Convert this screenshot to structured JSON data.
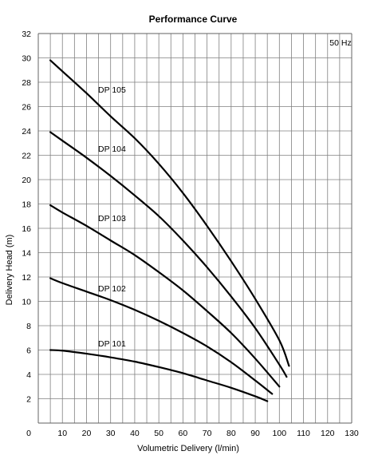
{
  "chart_data": {
    "type": "line",
    "title": "Performance Curve",
    "xlabel": "Volumetric Delivery (l/min)",
    "ylabel": "Delivery Head (m)",
    "xlim": [
      0,
      130
    ],
    "ylim": [
      0,
      32
    ],
    "x_ticks": [
      "0",
      "10",
      "20",
      "30",
      "40",
      "50",
      "60",
      "70",
      "80",
      "90",
      "100",
      "110",
      "120",
      "130"
    ],
    "y_ticks": [
      "2",
      "4",
      "6",
      "8",
      "10",
      "12",
      "14",
      "16",
      "18",
      "20",
      "22",
      "24",
      "26",
      "28",
      "30",
      "32"
    ],
    "grid": true,
    "annotation": "50 Hz",
    "series": [
      {
        "name": "DP 101",
        "x": [
          5,
          10,
          20,
          30,
          40,
          50,
          60,
          70,
          80,
          90,
          95
        ],
        "y": [
          6.0,
          5.95,
          5.7,
          5.4,
          5.05,
          4.6,
          4.1,
          3.5,
          2.9,
          2.2,
          1.8
        ]
      },
      {
        "name": "DP 102",
        "x": [
          5,
          10,
          20,
          30,
          40,
          50,
          60,
          70,
          80,
          90,
          97
        ],
        "y": [
          11.9,
          11.5,
          10.8,
          10.1,
          9.3,
          8.4,
          7.4,
          6.3,
          5.0,
          3.5,
          2.4
        ]
      },
      {
        "name": "DP 103",
        "x": [
          5,
          10,
          20,
          30,
          40,
          50,
          60,
          70,
          80,
          90,
          100
        ],
        "y": [
          17.9,
          17.3,
          16.2,
          15.0,
          13.8,
          12.4,
          10.9,
          9.2,
          7.4,
          5.3,
          3.0
        ]
      },
      {
        "name": "DP 104",
        "x": [
          5,
          10,
          20,
          30,
          40,
          50,
          60,
          70,
          80,
          90,
          100,
          103
        ],
        "y": [
          23.9,
          23.2,
          21.8,
          20.3,
          18.7,
          17.0,
          15.0,
          12.8,
          10.4,
          7.8,
          4.8,
          3.8
        ]
      },
      {
        "name": "DP 105",
        "x": [
          5,
          10,
          20,
          30,
          40,
          50,
          60,
          70,
          80,
          90,
          100,
          104
        ],
        "y": [
          29.8,
          28.9,
          27.1,
          25.2,
          23.4,
          21.3,
          18.9,
          16.2,
          13.3,
          10.2,
          6.8,
          4.7
        ]
      }
    ]
  }
}
